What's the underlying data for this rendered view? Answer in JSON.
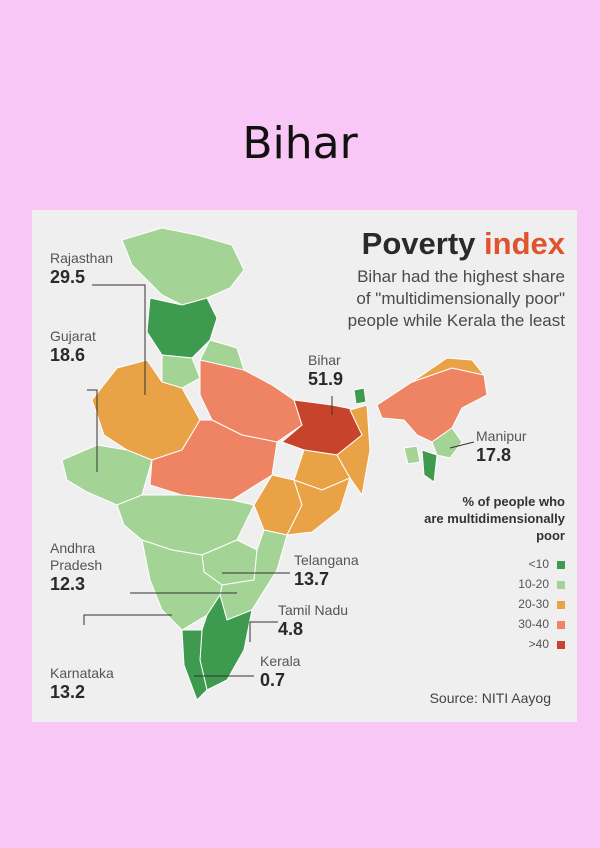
{
  "page_title": "Bihar",
  "infographic": {
    "title_part1": "Poverty",
    "title_part2": "index",
    "subtitle_lines": [
      "Bihar had the highest share",
      "of \"multidimensionally poor\"",
      "people while Kerala the least"
    ],
    "source": "Source: NITI Aayog"
  },
  "map_data": {
    "labels": [
      {
        "id": "rajasthan",
        "name": "Rajasthan",
        "value": "29.5"
      },
      {
        "id": "gujarat",
        "name": "Gujarat",
        "value": "18.6"
      },
      {
        "id": "bihar",
        "name": "Bihar",
        "value": "51.9"
      },
      {
        "id": "manipur",
        "name": "Manipur",
        "value": "17.8"
      },
      {
        "id": "andhra",
        "name_lines": [
          "Andhra",
          "Pradesh"
        ],
        "value": "12.3"
      },
      {
        "id": "telangana",
        "name": "Telangana",
        "value": "13.7"
      },
      {
        "id": "tamil-nadu",
        "name": "Tamil Nadu",
        "value": "4.8"
      },
      {
        "id": "kerala",
        "name": "Kerala",
        "value": "0.7"
      },
      {
        "id": "karnataka",
        "name": "Karnataka",
        "value": "13.2"
      }
    ],
    "legend": {
      "title_lines": [
        "% of people who",
        "are multidimensionally",
        "poor"
      ],
      "items": [
        {
          "label": "<10",
          "color": "#3e9a4f"
        },
        {
          "label": "10-20",
          "color": "#a3d495"
        },
        {
          "label": "20-30",
          "color": "#e9a346"
        },
        {
          "label": "30-40",
          "color": "#ee8463"
        },
        {
          "label": ">40",
          "color": "#c8432b"
        }
      ]
    },
    "colors": {
      "dark_green": "#3e9a4f",
      "light_green": "#a3d495",
      "orange": "#e9a346",
      "salmon": "#ee8463",
      "red": "#c8432b"
    }
  }
}
